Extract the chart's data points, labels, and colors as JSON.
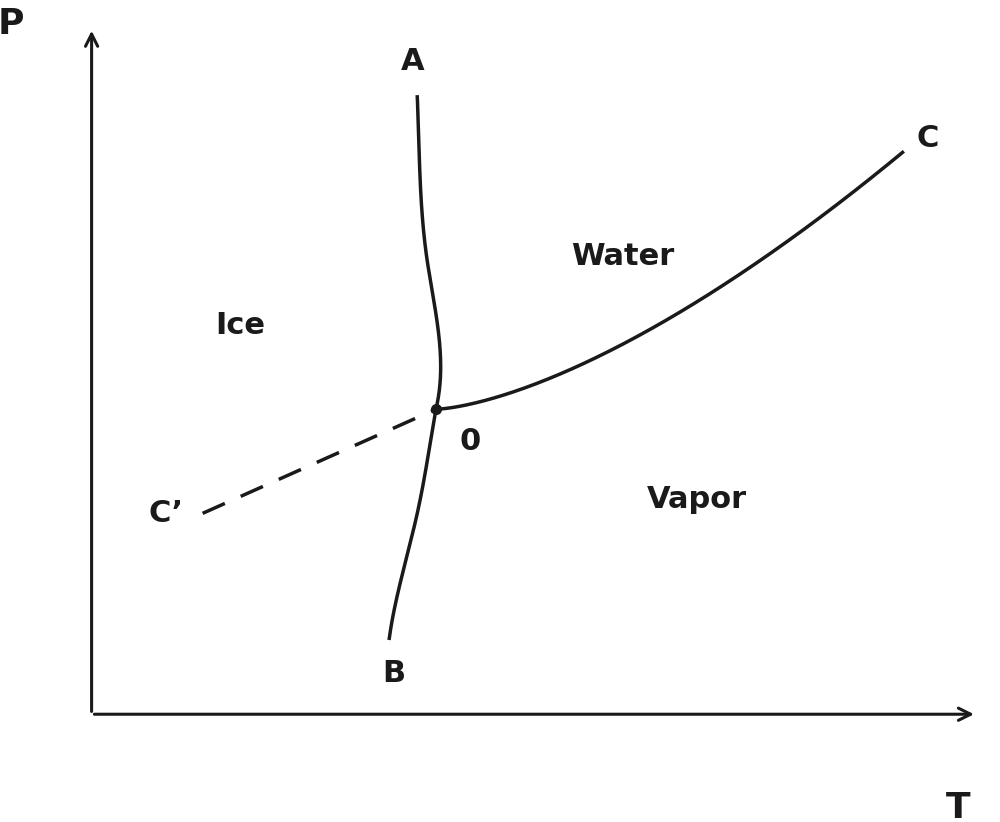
{
  "background_color": "#ffffff",
  "line_color": "#1a1a1a",
  "dashed_color": "#1a1a1a",
  "triple_point": [
    0.42,
    0.48
  ],
  "label_A": "A",
  "label_B": "B",
  "label_C": "C",
  "label_Cprime": "C’",
  "label_O": "0",
  "label_Ice": "Ice",
  "label_Water": "Water",
  "label_Vapor": "Vapor",
  "label_P": "P",
  "label_T": "T",
  "label_fontsize": 22,
  "region_fontsize": 22,
  "axis_label_fontsize": 26,
  "line_width": 2.5
}
